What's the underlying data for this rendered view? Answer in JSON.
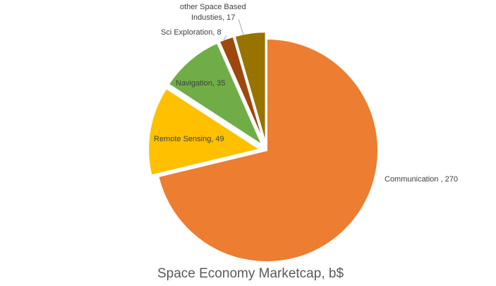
{
  "chart_data": {
    "type": "pie",
    "title": "Space Economy Marketcap, b$",
    "slices": [
      {
        "label": "Communication",
        "label_text": "Communication , 270",
        "value": 270,
        "color": "#ED7D31",
        "exploded": false
      },
      {
        "label": "Remote Sensing",
        "label_text": "Remote Sensing, 49",
        "value": 49,
        "color": "#FFC000",
        "exploded": true
      },
      {
        "label": "Navigation",
        "label_text": "Navigation, 35",
        "value": 35,
        "color": "#70AD47",
        "exploded": true
      },
      {
        "label": "Sci Exploration",
        "label_text": "Sci Exploration, 8",
        "value": 8,
        "color": "#9E480E",
        "exploded": true
      },
      {
        "label": "other Space Based Industies",
        "label_lines": [
          "other Space Based",
          "Industies, 17"
        ],
        "value": 17,
        "color": "#997300",
        "exploded": true
      }
    ]
  }
}
